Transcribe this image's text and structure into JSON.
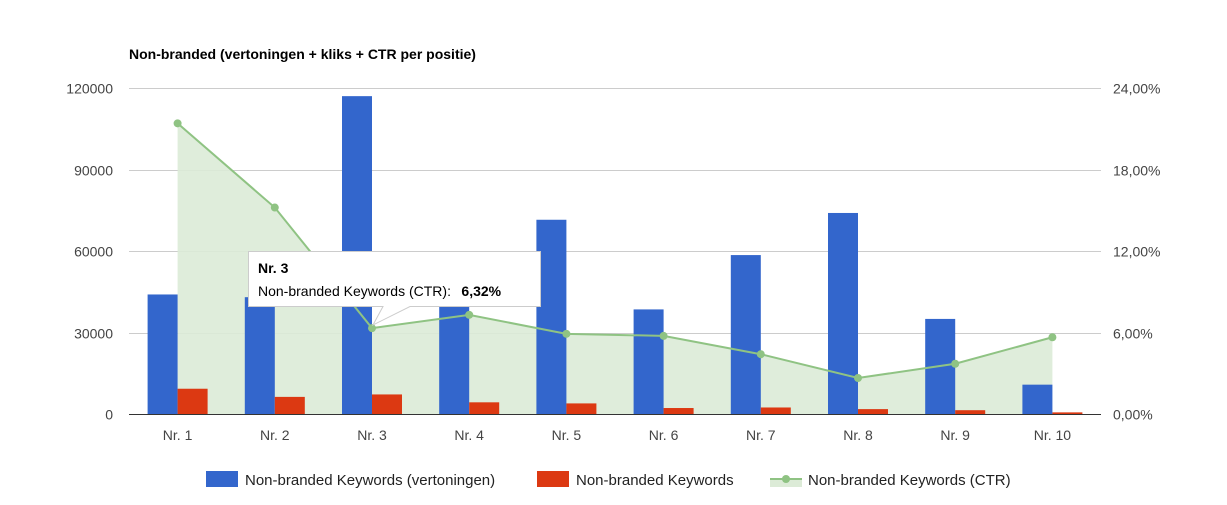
{
  "chart_data": {
    "type": "bar+line",
    "title": "Non-branded (vertoningen + kliks + CTR per positie)",
    "categories": [
      "Nr. 1",
      "Nr. 2",
      "Nr. 3",
      "Nr. 4",
      "Nr. 5",
      "Nr. 6",
      "Nr. 7",
      "Nr. 8",
      "Nr. 9",
      "Nr. 10"
    ],
    "series": [
      {
        "name": "Non-branded Keywords (vertoningen)",
        "type": "bar",
        "axis": "left",
        "color": "#3366cc",
        "values": [
          44000,
          43000,
          117000,
          41000,
          71500,
          38500,
          58500,
          74000,
          35000,
          10800
        ]
      },
      {
        "name": "Non-branded Keywords",
        "type": "bar",
        "axis": "left",
        "color": "#dc3912",
        "values": [
          9300,
          6300,
          7200,
          4300,
          3900,
          2200,
          2400,
          1800,
          1400,
          600
        ]
      },
      {
        "name": "Non-branded Keywords (CTR)",
        "type": "area-line",
        "axis": "right",
        "color": "#8fc383",
        "values": [
          21.4,
          15.2,
          6.32,
          7.3,
          5.9,
          5.75,
          4.4,
          2.65,
          3.7,
          5.65
        ]
      }
    ],
    "y_left": {
      "ylim": [
        0,
        120000
      ],
      "ticks": [
        "0",
        "30000",
        "60000",
        "90000",
        "120000"
      ]
    },
    "y_right": {
      "ylim": [
        0,
        24
      ],
      "ticks": [
        "0,00%",
        "6,00%",
        "12,00%",
        "18,00%",
        "24,00%"
      ]
    },
    "grid": true,
    "legend": "bottom",
    "tooltip": {
      "title": "Nr. 3",
      "label": "Non-branded Keywords (CTR):",
      "value": "6,32%",
      "category_index": 2
    }
  }
}
